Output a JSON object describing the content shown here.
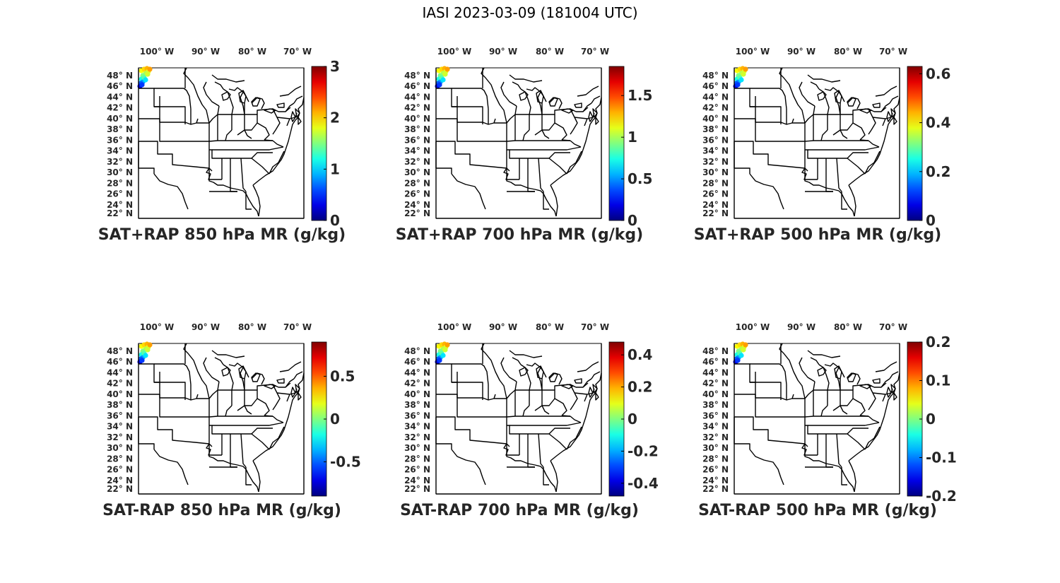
{
  "figure": {
    "title": "IASI 2023-03-09 (181004 UTC)"
  },
  "map_axes": {
    "lon_labels": [
      "100",
      "90",
      "80",
      "70"
    ],
    "lon_suffix": "W",
    "lat_labels": [
      "48",
      "46",
      "44",
      "42",
      "40",
      "38",
      "36",
      "34",
      "32",
      "30",
      "28",
      "26",
      "24",
      "22"
    ],
    "lat_suffix": "N",
    "degree_symbol": "°"
  },
  "colors": {
    "colormap": "jet",
    "outline": "#000000",
    "map_fill": "#ffffff"
  },
  "panels": [
    {
      "title": "SAT+RAP 850 hPa MR (g/kg)",
      "colorbar": {
        "min": 0,
        "max": 3,
        "ticks": [
          "3",
          "2",
          "1",
          "0"
        ],
        "tick_values": [
          3,
          2,
          1,
          0
        ]
      }
    },
    {
      "title": "SAT+RAP 700 hPa MR (g/kg)",
      "colorbar": {
        "min": 0,
        "max": 1.85,
        "ticks": [
          "1.5",
          "1",
          "0.5",
          "0"
        ],
        "tick_values": [
          1.5,
          1,
          0.5,
          0
        ]
      }
    },
    {
      "title": "SAT+RAP 500 hPa MR (g/kg)",
      "colorbar": {
        "min": 0,
        "max": 0.63,
        "ticks": [
          "0.6",
          "0.4",
          "0.2",
          "0"
        ],
        "tick_values": [
          0.6,
          0.4,
          0.2,
          0
        ]
      }
    },
    {
      "title": "SAT-RAP 850 hPa MR (g/kg)",
      "colorbar": {
        "min": -0.9,
        "max": 0.9,
        "ticks": [
          "0.5",
          "0",
          "-0.5"
        ],
        "tick_values": [
          0.5,
          0,
          -0.5
        ]
      }
    },
    {
      "title": "SAT-RAP 700 hPa MR (g/kg)",
      "colorbar": {
        "min": -0.48,
        "max": 0.48,
        "ticks": [
          "0.4",
          "0.2",
          "0",
          "-0.2",
          "-0.4"
        ],
        "tick_values": [
          0.4,
          0.2,
          0,
          -0.2,
          -0.4
        ]
      }
    },
    {
      "title": "SAT-RAP 500 hPa MR (g/kg)",
      "colorbar": {
        "min": -0.2,
        "max": 0.2,
        "ticks": [
          "0.2",
          "0.1",
          "0",
          "-0.1",
          "-0.2"
        ],
        "tick_values": [
          0.2,
          0.1,
          0,
          -0.1,
          -0.2
        ]
      }
    }
  ]
}
